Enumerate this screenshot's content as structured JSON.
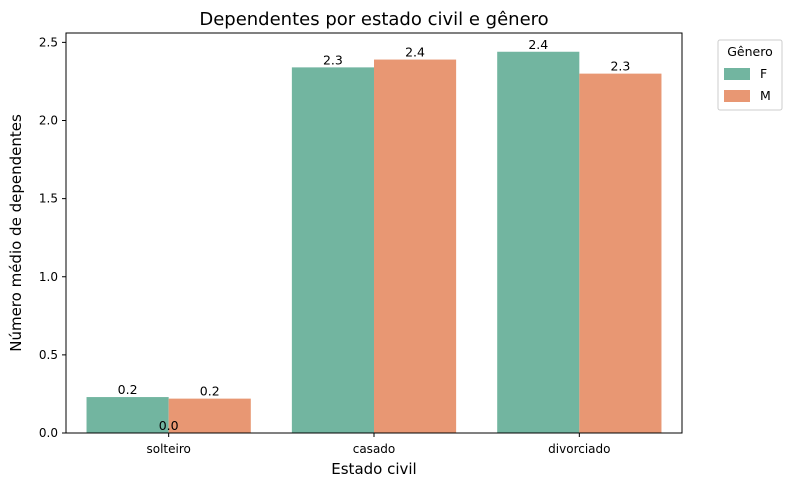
{
  "chart_data": {
    "type": "bar",
    "title": "Dependentes por estado civil e gênero",
    "xlabel": "Estado civil",
    "ylabel": "Número médio de dependentes",
    "categories": [
      "solteiro",
      "casado",
      "divorciado"
    ],
    "series": [
      {
        "name": "F",
        "color": "#72b5a0",
        "values": [
          0.23,
          2.34,
          2.44
        ],
        "labels": [
          "0.2",
          "2.3",
          "2.4"
        ]
      },
      {
        "name": "M",
        "color": "#e89773",
        "values": [
          0.22,
          2.39,
          2.3
        ],
        "labels": [
          "0.2",
          "2.4",
          "2.3"
        ]
      }
    ],
    "extra_labels": [
      {
        "category": "solteiro",
        "text": "0.0"
      }
    ],
    "ylim": [
      0,
      2.56
    ],
    "yticks": [
      0.0,
      0.5,
      1.0,
      1.5,
      2.0,
      2.5
    ],
    "ytick_labels": [
      "0.0",
      "0.5",
      "1.0",
      "1.5",
      "2.0",
      "2.5"
    ],
    "legend": {
      "title": "Gênero",
      "placement": "outside-right-top"
    },
    "grid": false
  }
}
